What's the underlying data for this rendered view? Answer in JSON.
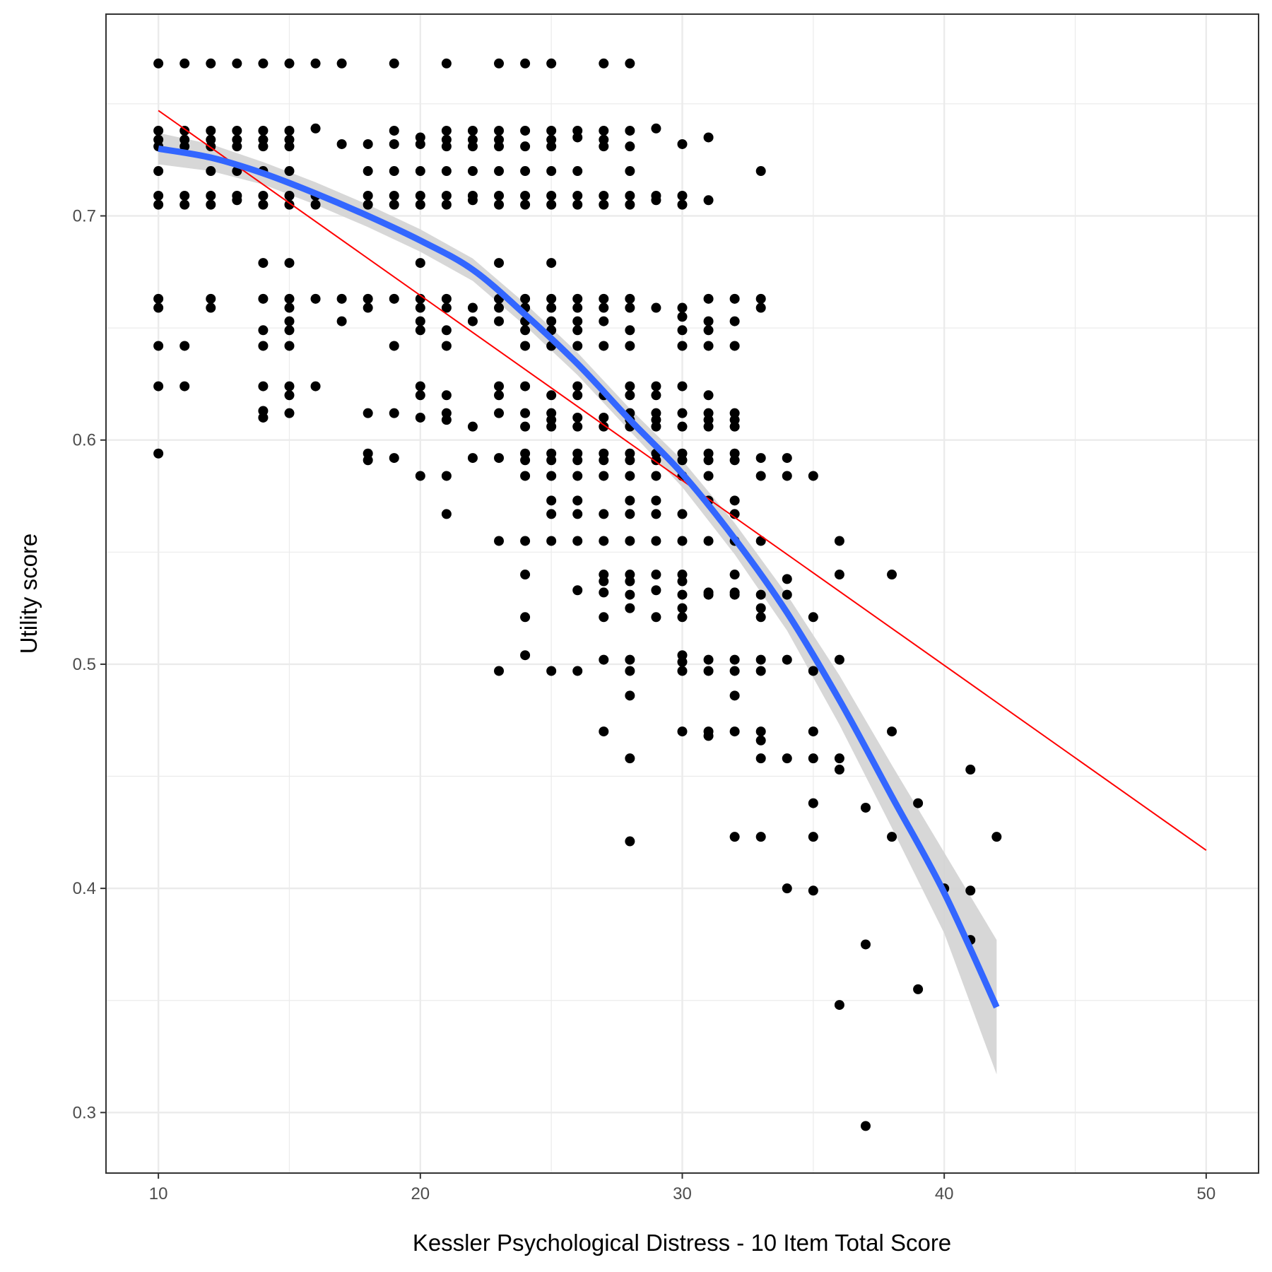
{
  "chart_data": {
    "type": "scatter",
    "title": "",
    "xlabel": "Kessler Psychological Distress - 10 Item Total Score",
    "ylabel": "Utility score",
    "xlim": [
      8,
      52
    ],
    "ylim": [
      0.273,
      0.79
    ],
    "x_ticks": [
      10,
      20,
      30,
      40,
      50
    ],
    "x_tick_labels": [
      "10",
      "20",
      "30",
      "40",
      "50"
    ],
    "y_ticks": [
      0.3,
      0.4,
      0.5,
      0.6,
      0.7
    ],
    "y_tick_labels": [
      "0.3",
      "0.4",
      "0.5",
      "0.6",
      "0.7"
    ],
    "grid": true,
    "legend": "none",
    "points": [
      [
        10,
        0.768
      ],
      [
        11,
        0.768
      ],
      [
        12,
        0.768
      ],
      [
        13,
        0.768
      ],
      [
        14,
        0.768
      ],
      [
        15,
        0.768
      ],
      [
        16,
        0.768
      ],
      [
        17,
        0.768
      ],
      [
        19,
        0.768
      ],
      [
        21,
        0.768
      ],
      [
        23,
        0.768
      ],
      [
        24,
        0.768
      ],
      [
        25,
        0.768
      ],
      [
        27,
        0.768
      ],
      [
        28,
        0.768
      ],
      [
        10,
        0.738
      ],
      [
        10,
        0.734
      ],
      [
        10,
        0.731
      ],
      [
        11,
        0.738
      ],
      [
        11,
        0.734
      ],
      [
        11,
        0.731
      ],
      [
        12,
        0.738
      ],
      [
        12,
        0.734
      ],
      [
        12,
        0.731
      ],
      [
        13,
        0.738
      ],
      [
        13,
        0.734
      ],
      [
        13,
        0.731
      ],
      [
        14,
        0.738
      ],
      [
        14,
        0.734
      ],
      [
        14,
        0.731
      ],
      [
        15,
        0.738
      ],
      [
        15,
        0.734
      ],
      [
        15,
        0.731
      ],
      [
        16,
        0.739
      ],
      [
        17,
        0.732
      ],
      [
        18,
        0.732
      ],
      [
        19,
        0.738
      ],
      [
        19,
        0.732
      ],
      [
        20,
        0.735
      ],
      [
        20,
        0.732
      ],
      [
        21,
        0.738
      ],
      [
        21,
        0.734
      ],
      [
        21,
        0.731
      ],
      [
        22,
        0.738
      ],
      [
        22,
        0.734
      ],
      [
        22,
        0.731
      ],
      [
        23,
        0.738
      ],
      [
        23,
        0.734
      ],
      [
        23,
        0.731
      ],
      [
        24,
        0.738
      ],
      [
        24,
        0.731
      ],
      [
        25,
        0.738
      ],
      [
        25,
        0.734
      ],
      [
        25,
        0.731
      ],
      [
        26,
        0.738
      ],
      [
        26,
        0.735
      ],
      [
        27,
        0.738
      ],
      [
        27,
        0.734
      ],
      [
        27,
        0.731
      ],
      [
        28,
        0.738
      ],
      [
        28,
        0.731
      ],
      [
        29,
        0.739
      ],
      [
        30,
        0.732
      ],
      [
        31,
        0.735
      ],
      [
        10,
        0.72
      ],
      [
        12,
        0.72
      ],
      [
        13,
        0.72
      ],
      [
        14,
        0.72
      ],
      [
        15,
        0.72
      ],
      [
        18,
        0.72
      ],
      [
        19,
        0.72
      ],
      [
        20,
        0.72
      ],
      [
        21,
        0.72
      ],
      [
        22,
        0.72
      ],
      [
        23,
        0.72
      ],
      [
        24,
        0.72
      ],
      [
        25,
        0.72
      ],
      [
        26,
        0.72
      ],
      [
        28,
        0.72
      ],
      [
        33,
        0.72
      ],
      [
        10,
        0.709
      ],
      [
        10,
        0.705
      ],
      [
        11,
        0.709
      ],
      [
        11,
        0.705
      ],
      [
        12,
        0.709
      ],
      [
        12,
        0.705
      ],
      [
        13,
        0.709
      ],
      [
        13,
        0.707
      ],
      [
        14,
        0.709
      ],
      [
        14,
        0.705
      ],
      [
        15,
        0.709
      ],
      [
        15,
        0.705
      ],
      [
        16,
        0.709
      ],
      [
        16,
        0.705
      ],
      [
        18,
        0.709
      ],
      [
        18,
        0.705
      ],
      [
        19,
        0.709
      ],
      [
        19,
        0.705
      ],
      [
        20,
        0.709
      ],
      [
        20,
        0.705
      ],
      [
        21,
        0.709
      ],
      [
        21,
        0.705
      ],
      [
        22,
        0.709
      ],
      [
        22,
        0.707
      ],
      [
        23,
        0.709
      ],
      [
        23,
        0.705
      ],
      [
        24,
        0.709
      ],
      [
        24,
        0.705
      ],
      [
        25,
        0.709
      ],
      [
        25,
        0.705
      ],
      [
        26,
        0.709
      ],
      [
        26,
        0.705
      ],
      [
        27,
        0.709
      ],
      [
        27,
        0.705
      ],
      [
        28,
        0.709
      ],
      [
        28,
        0.705
      ],
      [
        29,
        0.709
      ],
      [
        29,
        0.707
      ],
      [
        30,
        0.709
      ],
      [
        30,
        0.705
      ],
      [
        31,
        0.707
      ],
      [
        14,
        0.679
      ],
      [
        15,
        0.679
      ],
      [
        20,
        0.679
      ],
      [
        23,
        0.679
      ],
      [
        25,
        0.679
      ],
      [
        10,
        0.663
      ],
      [
        10,
        0.659
      ],
      [
        12,
        0.663
      ],
      [
        12,
        0.659
      ],
      [
        14,
        0.663
      ],
      [
        15,
        0.663
      ],
      [
        15,
        0.659
      ],
      [
        16,
        0.663
      ],
      [
        17,
        0.663
      ],
      [
        18,
        0.663
      ],
      [
        18,
        0.659
      ],
      [
        19,
        0.663
      ],
      [
        20,
        0.663
      ],
      [
        20,
        0.659
      ],
      [
        21,
        0.663
      ],
      [
        21,
        0.659
      ],
      [
        22,
        0.659
      ],
      [
        23,
        0.663
      ],
      [
        23,
        0.659
      ],
      [
        24,
        0.663
      ],
      [
        24,
        0.659
      ],
      [
        25,
        0.663
      ],
      [
        25,
        0.659
      ],
      [
        26,
        0.663
      ],
      [
        26,
        0.659
      ],
      [
        27,
        0.663
      ],
      [
        27,
        0.659
      ],
      [
        28,
        0.663
      ],
      [
        28,
        0.659
      ],
      [
        29,
        0.659
      ],
      [
        30,
        0.659
      ],
      [
        30,
        0.655
      ],
      [
        31,
        0.663
      ],
      [
        32,
        0.663
      ],
      [
        33,
        0.663
      ],
      [
        33,
        0.659
      ],
      [
        14,
        0.649
      ],
      [
        15,
        0.653
      ],
      [
        15,
        0.649
      ],
      [
        17,
        0.653
      ],
      [
        20,
        0.653
      ],
      [
        20,
        0.649
      ],
      [
        21,
        0.649
      ],
      [
        22,
        0.653
      ],
      [
        23,
        0.653
      ],
      [
        24,
        0.653
      ],
      [
        24,
        0.649
      ],
      [
        25,
        0.653
      ],
      [
        25,
        0.649
      ],
      [
        26,
        0.653
      ],
      [
        26,
        0.649
      ],
      [
        27,
        0.653
      ],
      [
        28,
        0.649
      ],
      [
        30,
        0.649
      ],
      [
        31,
        0.653
      ],
      [
        31,
        0.649
      ],
      [
        32,
        0.653
      ],
      [
        10,
        0.642
      ],
      [
        11,
        0.642
      ],
      [
        14,
        0.642
      ],
      [
        15,
        0.642
      ],
      [
        19,
        0.642
      ],
      [
        21,
        0.642
      ],
      [
        24,
        0.642
      ],
      [
        25,
        0.642
      ],
      [
        26,
        0.642
      ],
      [
        27,
        0.642
      ],
      [
        28,
        0.642
      ],
      [
        30,
        0.642
      ],
      [
        31,
        0.642
      ],
      [
        32,
        0.642
      ],
      [
        10,
        0.624
      ],
      [
        11,
        0.624
      ],
      [
        14,
        0.624
      ],
      [
        15,
        0.624
      ],
      [
        15,
        0.62
      ],
      [
        16,
        0.624
      ],
      [
        20,
        0.624
      ],
      [
        20,
        0.62
      ],
      [
        21,
        0.62
      ],
      [
        23,
        0.624
      ],
      [
        23,
        0.62
      ],
      [
        24,
        0.624
      ],
      [
        25,
        0.62
      ],
      [
        26,
        0.624
      ],
      [
        26,
        0.62
      ],
      [
        27,
        0.62
      ],
      [
        28,
        0.624
      ],
      [
        28,
        0.62
      ],
      [
        29,
        0.624
      ],
      [
        29,
        0.62
      ],
      [
        30,
        0.624
      ],
      [
        31,
        0.62
      ],
      [
        14,
        0.613
      ],
      [
        14,
        0.61
      ],
      [
        15,
        0.612
      ],
      [
        18,
        0.612
      ],
      [
        19,
        0.612
      ],
      [
        20,
        0.61
      ],
      [
        21,
        0.612
      ],
      [
        21,
        0.609
      ],
      [
        22,
        0.606
      ],
      [
        23,
        0.612
      ],
      [
        24,
        0.612
      ],
      [
        24,
        0.606
      ],
      [
        25,
        0.612
      ],
      [
        25,
        0.609
      ],
      [
        25,
        0.606
      ],
      [
        26,
        0.61
      ],
      [
        26,
        0.606
      ],
      [
        27,
        0.61
      ],
      [
        27,
        0.606
      ],
      [
        28,
        0.612
      ],
      [
        28,
        0.609
      ],
      [
        28,
        0.606
      ],
      [
        29,
        0.612
      ],
      [
        29,
        0.609
      ],
      [
        29,
        0.606
      ],
      [
        30,
        0.612
      ],
      [
        30,
        0.606
      ],
      [
        31,
        0.612
      ],
      [
        31,
        0.609
      ],
      [
        31,
        0.606
      ],
      [
        32,
        0.612
      ],
      [
        32,
        0.609
      ],
      [
        32,
        0.606
      ],
      [
        10,
        0.594
      ],
      [
        18,
        0.594
      ],
      [
        18,
        0.591
      ],
      [
        19,
        0.592
      ],
      [
        22,
        0.592
      ],
      [
        23,
        0.592
      ],
      [
        24,
        0.594
      ],
      [
        24,
        0.591
      ],
      [
        25,
        0.594
      ],
      [
        25,
        0.591
      ],
      [
        26,
        0.594
      ],
      [
        26,
        0.591
      ],
      [
        27,
        0.594
      ],
      [
        27,
        0.591
      ],
      [
        28,
        0.594
      ],
      [
        28,
        0.591
      ],
      [
        29,
        0.594
      ],
      [
        29,
        0.591
      ],
      [
        30,
        0.594
      ],
      [
        30,
        0.591
      ],
      [
        31,
        0.594
      ],
      [
        31,
        0.591
      ],
      [
        32,
        0.594
      ],
      [
        32,
        0.591
      ],
      [
        33,
        0.592
      ],
      [
        34,
        0.592
      ],
      [
        20,
        0.584
      ],
      [
        21,
        0.584
      ],
      [
        24,
        0.584
      ],
      [
        25,
        0.584
      ],
      [
        26,
        0.584
      ],
      [
        27,
        0.584
      ],
      [
        28,
        0.584
      ],
      [
        29,
        0.584
      ],
      [
        30,
        0.584
      ],
      [
        31,
        0.584
      ],
      [
        33,
        0.584
      ],
      [
        34,
        0.584
      ],
      [
        35,
        0.584
      ],
      [
        25,
        0.573
      ],
      [
        26,
        0.573
      ],
      [
        28,
        0.573
      ],
      [
        29,
        0.573
      ],
      [
        31,
        0.573
      ],
      [
        32,
        0.573
      ],
      [
        21,
        0.567
      ],
      [
        25,
        0.567
      ],
      [
        26,
        0.567
      ],
      [
        27,
        0.567
      ],
      [
        28,
        0.567
      ],
      [
        29,
        0.567
      ],
      [
        30,
        0.567
      ],
      [
        32,
        0.567
      ],
      [
        23,
        0.555
      ],
      [
        24,
        0.555
      ],
      [
        25,
        0.555
      ],
      [
        26,
        0.555
      ],
      [
        27,
        0.555
      ],
      [
        28,
        0.555
      ],
      [
        29,
        0.555
      ],
      [
        30,
        0.555
      ],
      [
        31,
        0.555
      ],
      [
        32,
        0.555
      ],
      [
        33,
        0.555
      ],
      [
        36,
        0.555
      ],
      [
        24,
        0.54
      ],
      [
        27,
        0.54
      ],
      [
        27,
        0.537
      ],
      [
        28,
        0.54
      ],
      [
        28,
        0.537
      ],
      [
        29,
        0.54
      ],
      [
        30,
        0.54
      ],
      [
        30,
        0.537
      ],
      [
        32,
        0.54
      ],
      [
        34,
        0.538
      ],
      [
        36,
        0.54
      ],
      [
        38,
        0.54
      ],
      [
        26,
        0.533
      ],
      [
        27,
        0.532
      ],
      [
        28,
        0.531
      ],
      [
        29,
        0.533
      ],
      [
        30,
        0.531
      ],
      [
        31,
        0.532
      ],
      [
        31,
        0.531
      ],
      [
        32,
        0.532
      ],
      [
        32,
        0.531
      ],
      [
        33,
        0.531
      ],
      [
        34,
        0.531
      ],
      [
        28,
        0.525
      ],
      [
        30,
        0.525
      ],
      [
        33,
        0.525
      ],
      [
        24,
        0.521
      ],
      [
        27,
        0.521
      ],
      [
        29,
        0.521
      ],
      [
        30,
        0.521
      ],
      [
        33,
        0.521
      ],
      [
        35,
        0.521
      ],
      [
        24,
        0.504
      ],
      [
        27,
        0.502
      ],
      [
        28,
        0.502
      ],
      [
        30,
        0.504
      ],
      [
        30,
        0.501
      ],
      [
        31,
        0.502
      ],
      [
        32,
        0.502
      ],
      [
        33,
        0.502
      ],
      [
        34,
        0.502
      ],
      [
        36,
        0.502
      ],
      [
        23,
        0.497
      ],
      [
        25,
        0.497
      ],
      [
        26,
        0.497
      ],
      [
        28,
        0.497
      ],
      [
        30,
        0.497
      ],
      [
        31,
        0.497
      ],
      [
        32,
        0.497
      ],
      [
        33,
        0.497
      ],
      [
        35,
        0.497
      ],
      [
        28,
        0.486
      ],
      [
        32,
        0.486
      ],
      [
        27,
        0.47
      ],
      [
        30,
        0.47
      ],
      [
        31,
        0.47
      ],
      [
        31,
        0.468
      ],
      [
        32,
        0.47
      ],
      [
        33,
        0.47
      ],
      [
        33,
        0.466
      ],
      [
        35,
        0.47
      ],
      [
        38,
        0.47
      ],
      [
        28,
        0.458
      ],
      [
        33,
        0.458
      ],
      [
        34,
        0.458
      ],
      [
        35,
        0.458
      ],
      [
        36,
        0.458
      ],
      [
        36,
        0.453
      ],
      [
        41,
        0.453
      ],
      [
        35,
        0.438
      ],
      [
        37,
        0.436
      ],
      [
        39,
        0.438
      ],
      [
        28,
        0.421
      ],
      [
        32,
        0.423
      ],
      [
        33,
        0.423
      ],
      [
        35,
        0.423
      ],
      [
        38,
        0.423
      ],
      [
        42,
        0.423
      ],
      [
        34,
        0.4
      ],
      [
        35,
        0.399
      ],
      [
        40,
        0.4
      ],
      [
        41,
        0.399
      ],
      [
        37,
        0.375
      ],
      [
        41,
        0.377
      ],
      [
        39,
        0.355
      ],
      [
        36,
        0.348
      ],
      [
        37,
        0.294
      ]
    ],
    "series": [
      {
        "type": "line",
        "color": "#ff0000",
        "points": [
          [
            10,
            0.747
          ],
          [
            50,
            0.417
          ]
        ]
      },
      {
        "type": "smooth",
        "color": "#3366ff",
        "band_color": "#d3d3d3",
        "points": [
          [
            10,
            0.73,
            0.737,
            0.723
          ],
          [
            12,
            0.726,
            0.732,
            0.72
          ],
          [
            14,
            0.719,
            0.724,
            0.714
          ],
          [
            16,
            0.71,
            0.715,
            0.705
          ],
          [
            18,
            0.7,
            0.705,
            0.695
          ],
          [
            20,
            0.689,
            0.694,
            0.684
          ],
          [
            22,
            0.676,
            0.681,
            0.671
          ],
          [
            24,
            0.656,
            0.661,
            0.651
          ],
          [
            26,
            0.634,
            0.639,
            0.629
          ],
          [
            28,
            0.609,
            0.614,
            0.604
          ],
          [
            30,
            0.585,
            0.591,
            0.579
          ],
          [
            32,
            0.556,
            0.563,
            0.549
          ],
          [
            34,
            0.523,
            0.531,
            0.515
          ],
          [
            36,
            0.484,
            0.495,
            0.473
          ],
          [
            38,
            0.441,
            0.455,
            0.427
          ],
          [
            40,
            0.398,
            0.416,
            0.38
          ],
          [
            42,
            0.347,
            0.377,
            0.317
          ]
        ]
      }
    ]
  }
}
